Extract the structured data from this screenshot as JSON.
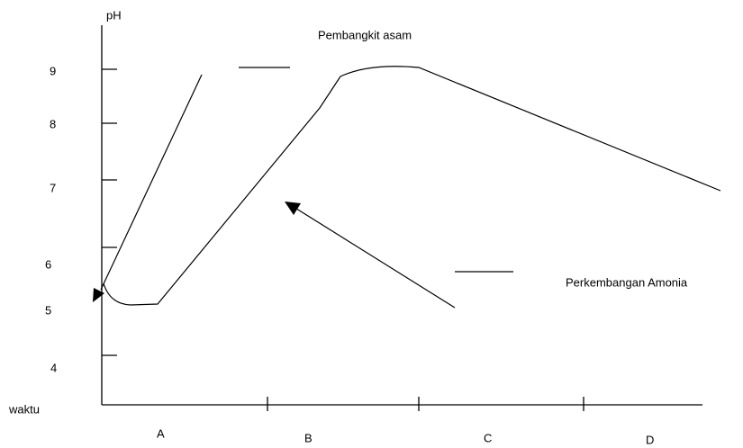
{
  "title": "Pembangkit asam",
  "annotation": "Perkembangan Amonia",
  "y_axis": {
    "label": "pH",
    "ticks": [
      9,
      8,
      7,
      6,
      5,
      4
    ]
  },
  "x_axis": {
    "label": "waktu",
    "phases": [
      "A",
      "B",
      "C",
      "D"
    ]
  }
}
